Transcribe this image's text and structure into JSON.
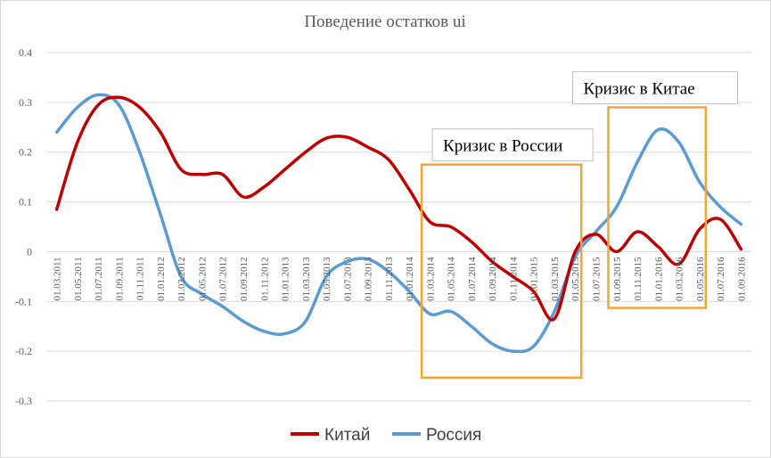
{
  "chart_data": {
    "type": "line",
    "title": "Поведение остатков ui",
    "xlabel": "",
    "ylabel": "",
    "ylim": [
      -0.3,
      0.4
    ],
    "y_ticks": [
      "0.4",
      "0.3",
      "0.2",
      "0.1",
      "0",
      "-0.1",
      "-0.2",
      "-0.3"
    ],
    "x_ticks": [
      "01.03.2011",
      "01.05.2011",
      "01.07.2011",
      "01.09.2011",
      "01.11.2011",
      "01.01.2012",
      "01.03.2012",
      "01.05.2012",
      "01.07.2012",
      "01.09.2012",
      "01.11.2012",
      "01.01.2013",
      "01.03.2013",
      "01.05.2013",
      "01.07.2013",
      "01.09.2013",
      "01.11.2013",
      "01.01.2014",
      "01.03.2014",
      "01.05.2014",
      "01.07.2014",
      "01.09.2014",
      "01.11.2014",
      "01.01.2015",
      "01.03.2015",
      "01.05.2015",
      "01.07.2015",
      "01.09.2015",
      "01.11.2015",
      "01.01.2016",
      "01.03.2016",
      "01.05.2016",
      "01.07.2016",
      "01.09.2016"
    ],
    "grid": "horizontal",
    "legend_position": "bottom",
    "series": [
      {
        "name": "Китай",
        "color": "#c00000",
        "values": [
          0.085,
          0.22,
          0.295,
          0.31,
          0.29,
          0.24,
          0.165,
          0.155,
          0.155,
          0.11,
          0.13,
          0.165,
          0.2,
          0.228,
          0.23,
          0.21,
          0.185,
          0.125,
          0.06,
          0.05,
          0.02,
          -0.02,
          -0.05,
          -0.08,
          -0.135,
          0.0,
          0.035,
          0.0,
          0.04,
          0.01,
          -0.025,
          0.045,
          0.065,
          0.005
        ]
      },
      {
        "name": "Россия",
        "color": "#5b9bd5",
        "values": [
          0.24,
          0.29,
          0.315,
          0.295,
          0.2,
          0.075,
          -0.05,
          -0.085,
          -0.11,
          -0.14,
          -0.16,
          -0.165,
          -0.14,
          -0.05,
          -0.02,
          -0.015,
          -0.04,
          -0.08,
          -0.125,
          -0.12,
          -0.15,
          -0.185,
          -0.2,
          -0.19,
          -0.12,
          -0.01,
          0.04,
          0.09,
          0.18,
          0.245,
          0.22,
          0.14,
          0.09,
          0.055
        ]
      }
    ],
    "annotations": [
      {
        "label": "Кризис в России",
        "from_index": 18,
        "to_index": 25,
        "y_from": -0.253,
        "y_to": 0.175
      },
      {
        "label": "Кризис в Китае",
        "from_index": 27,
        "to_index": 31,
        "y_from": -0.113,
        "y_to": 0.29
      }
    ]
  }
}
